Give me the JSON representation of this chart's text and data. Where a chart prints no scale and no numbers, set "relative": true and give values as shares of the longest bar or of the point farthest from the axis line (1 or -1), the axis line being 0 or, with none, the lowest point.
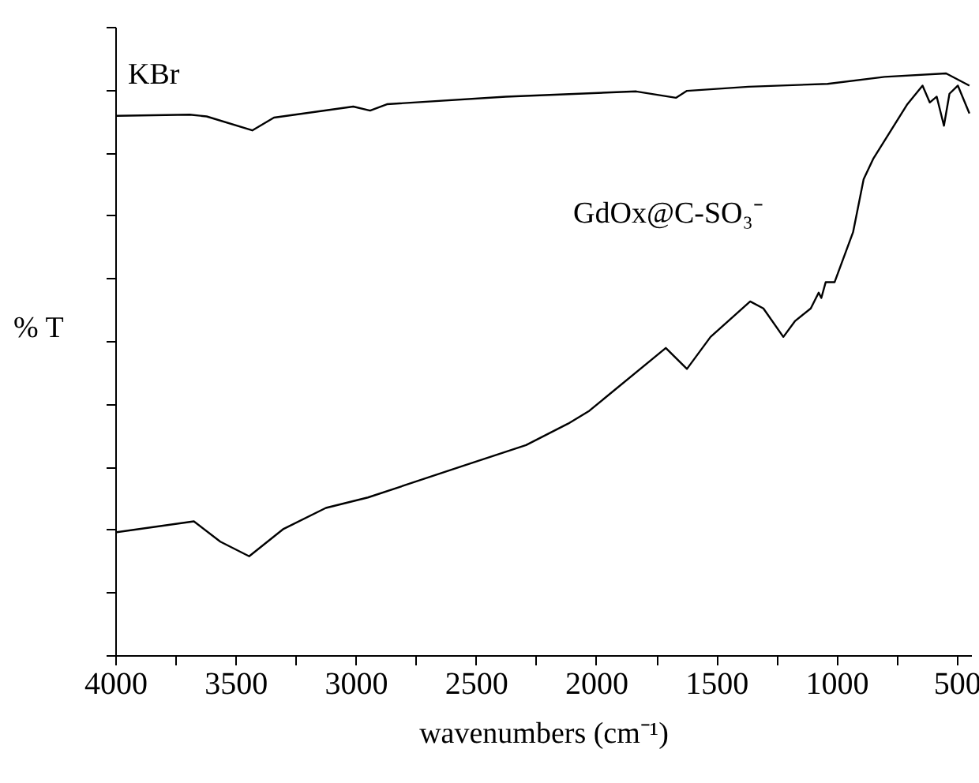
{
  "chart_data": {
    "type": "line",
    "relative": true,
    "xlabel": "wavenumbers (cm⁻¹)",
    "ylabel": "% T",
    "xlim": [
      4000,
      440
    ],
    "xticks": [
      4000,
      {
        "value": 3750,
        "label": null
      },
      3500,
      {
        "value": 3250,
        "label": null
      },
      3000,
      {
        "value": 2750,
        "label": null
      },
      2500,
      {
        "value": 2250,
        "label": null
      },
      2000,
      {
        "value": 1750,
        "label": null
      },
      1500,
      {
        "value": 1250,
        "label": null
      },
      1000,
      {
        "value": 750,
        "label": null
      },
      500
    ],
    "grid": false,
    "legend": "top left",
    "line_style": "solid",
    "marker": "none",
    "series": [
      {
        "name": "KBr",
        "color": "#000000",
        "x": [
          3995,
          3690,
          3620,
          3430,
          3340,
          3010,
          2940,
          2870,
          2375,
          1833,
          1668,
          1622,
          1366,
          1037,
          800,
          544,
          447
        ],
        "values": [
          0.927,
          0.929,
          0.926,
          0.902,
          0.924,
          0.943,
          0.936,
          0.947,
          0.96,
          0.969,
          0.958,
          0.97,
          0.977,
          0.982,
          0.994,
          1,
          0.979
        ]
      },
      {
        "name": "GdOx@C-SO₃⁻",
        "color": "#000000",
        "x": [
          4000,
          3673,
          3563,
          3443,
          3300,
          3124,
          2949,
          2555,
          2291,
          2116,
          2028,
          1710,
          1622,
          1524,
          1359,
          1304,
          1221,
          1173,
          1107,
          1074,
          1063,
          1045,
          1008,
          931,
          887,
          846,
          707,
          642,
          612,
          583,
          553,
          530,
          495,
          447
        ],
        "values": [
          0.211,
          0.23,
          0.195,
          0.17,
          0.217,
          0.253,
          0.271,
          0.325,
          0.361,
          0.398,
          0.42,
          0.528,
          0.492,
          0.547,
          0.608,
          0.596,
          0.547,
          0.574,
          0.596,
          0.623,
          0.614,
          0.641,
          0.641,
          0.727,
          0.818,
          0.854,
          0.946,
          0.979,
          0.95,
          0.96,
          0.91,
          0.965,
          0.979,
          0.931
        ]
      }
    ]
  }
}
